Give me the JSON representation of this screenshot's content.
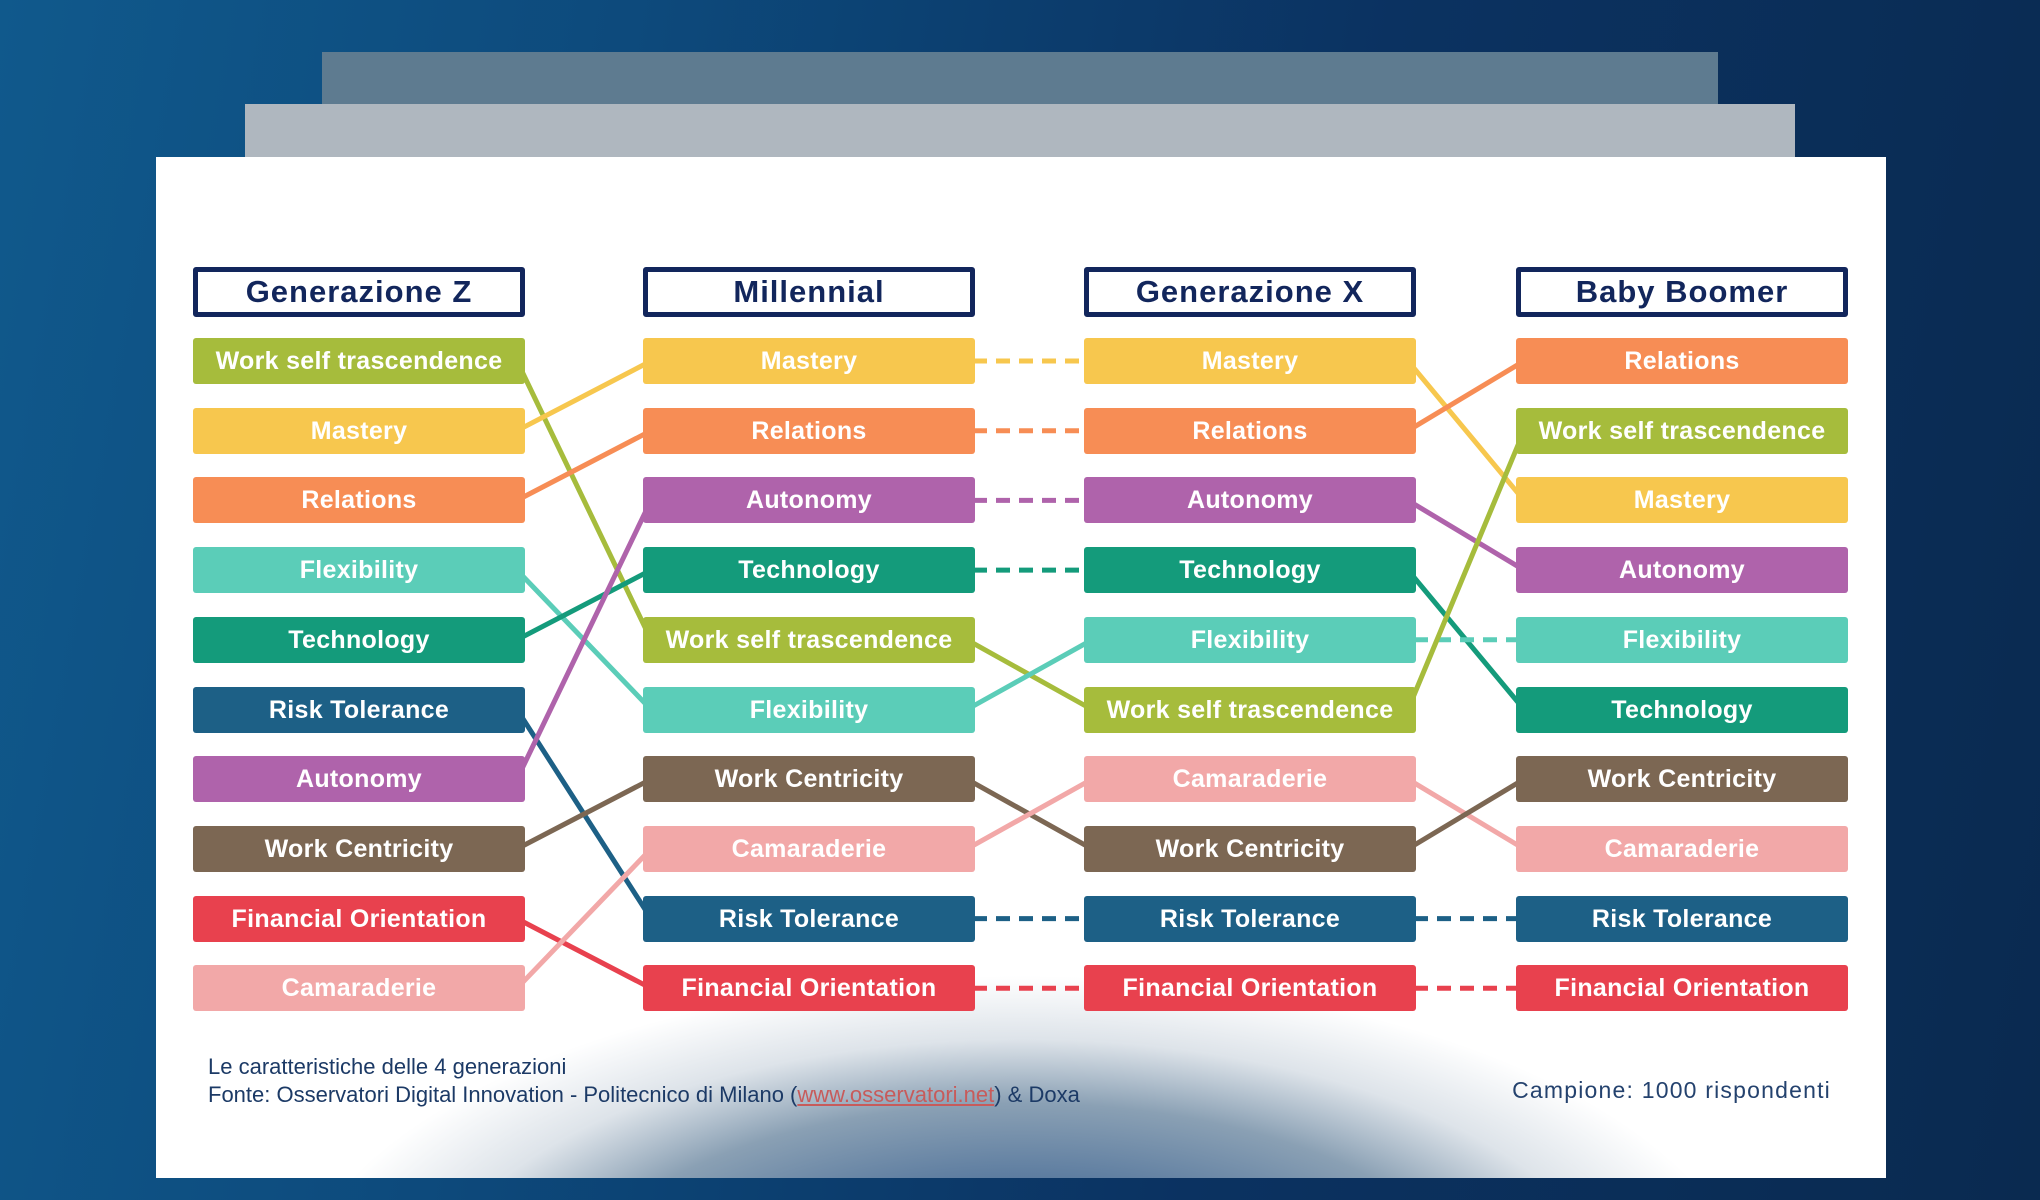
{
  "columns": [
    {
      "title": "Generazione Z",
      "items": [
        "Work self trascendence",
        "Mastery",
        "Relations",
        "Flexibility",
        "Technology",
        "Risk Tolerance",
        "Autonomy",
        "Work Centricity",
        "Financial Orientation",
        "Camaraderie"
      ]
    },
    {
      "title": "Millennial",
      "items": [
        "Mastery",
        "Relations",
        "Autonomy",
        "Technology",
        "Work self trascendence",
        "Flexibility",
        "Work Centricity",
        "Camaraderie",
        "Risk Tolerance",
        "Financial Orientation"
      ]
    },
    {
      "title": "Generazione X",
      "items": [
        "Mastery",
        "Relations",
        "Autonomy",
        "Technology",
        "Flexibility",
        "Work self trascendence",
        "Camaraderie",
        "Work Centricity",
        "Risk Tolerance",
        "Financial Orientation"
      ]
    },
    {
      "title": "Baby Boomer",
      "items": [
        "Relations",
        "Work self trascendence",
        "Mastery",
        "Autonomy",
        "Flexibility",
        "Technology",
        "Work Centricity",
        "Camaraderie",
        "Risk Tolerance",
        "Financial Orientation"
      ]
    }
  ],
  "value_colors": {
    "Work self trascendence": "#A6BC3C",
    "Mastery": "#F7C74E",
    "Relations": "#F78D55",
    "Flexibility": "#5BCDB8",
    "Technology": "#149B7B",
    "Risk Tolerance": "#1D6086",
    "Autonomy": "#AF63AB",
    "Work Centricity": "#7C6753",
    "Financial Orientation": "#E8414E",
    "Camaraderie": "#F2A8A8"
  },
  "theme": {
    "header_navy": "#12265C",
    "caption_color": "#1C3A66",
    "link_color": "#C75B5B"
  },
  "footer": {
    "caption_title": "Le caratteristiche delle 4 generazioni",
    "source_prefix": "Fonte: Osservatori Digital Innovation - Politecnico di Milano (",
    "source_link": "www.osservatori.net",
    "source_suffix": ") & Doxa",
    "sample_note": "Campione: 1000 rispondenti"
  }
}
